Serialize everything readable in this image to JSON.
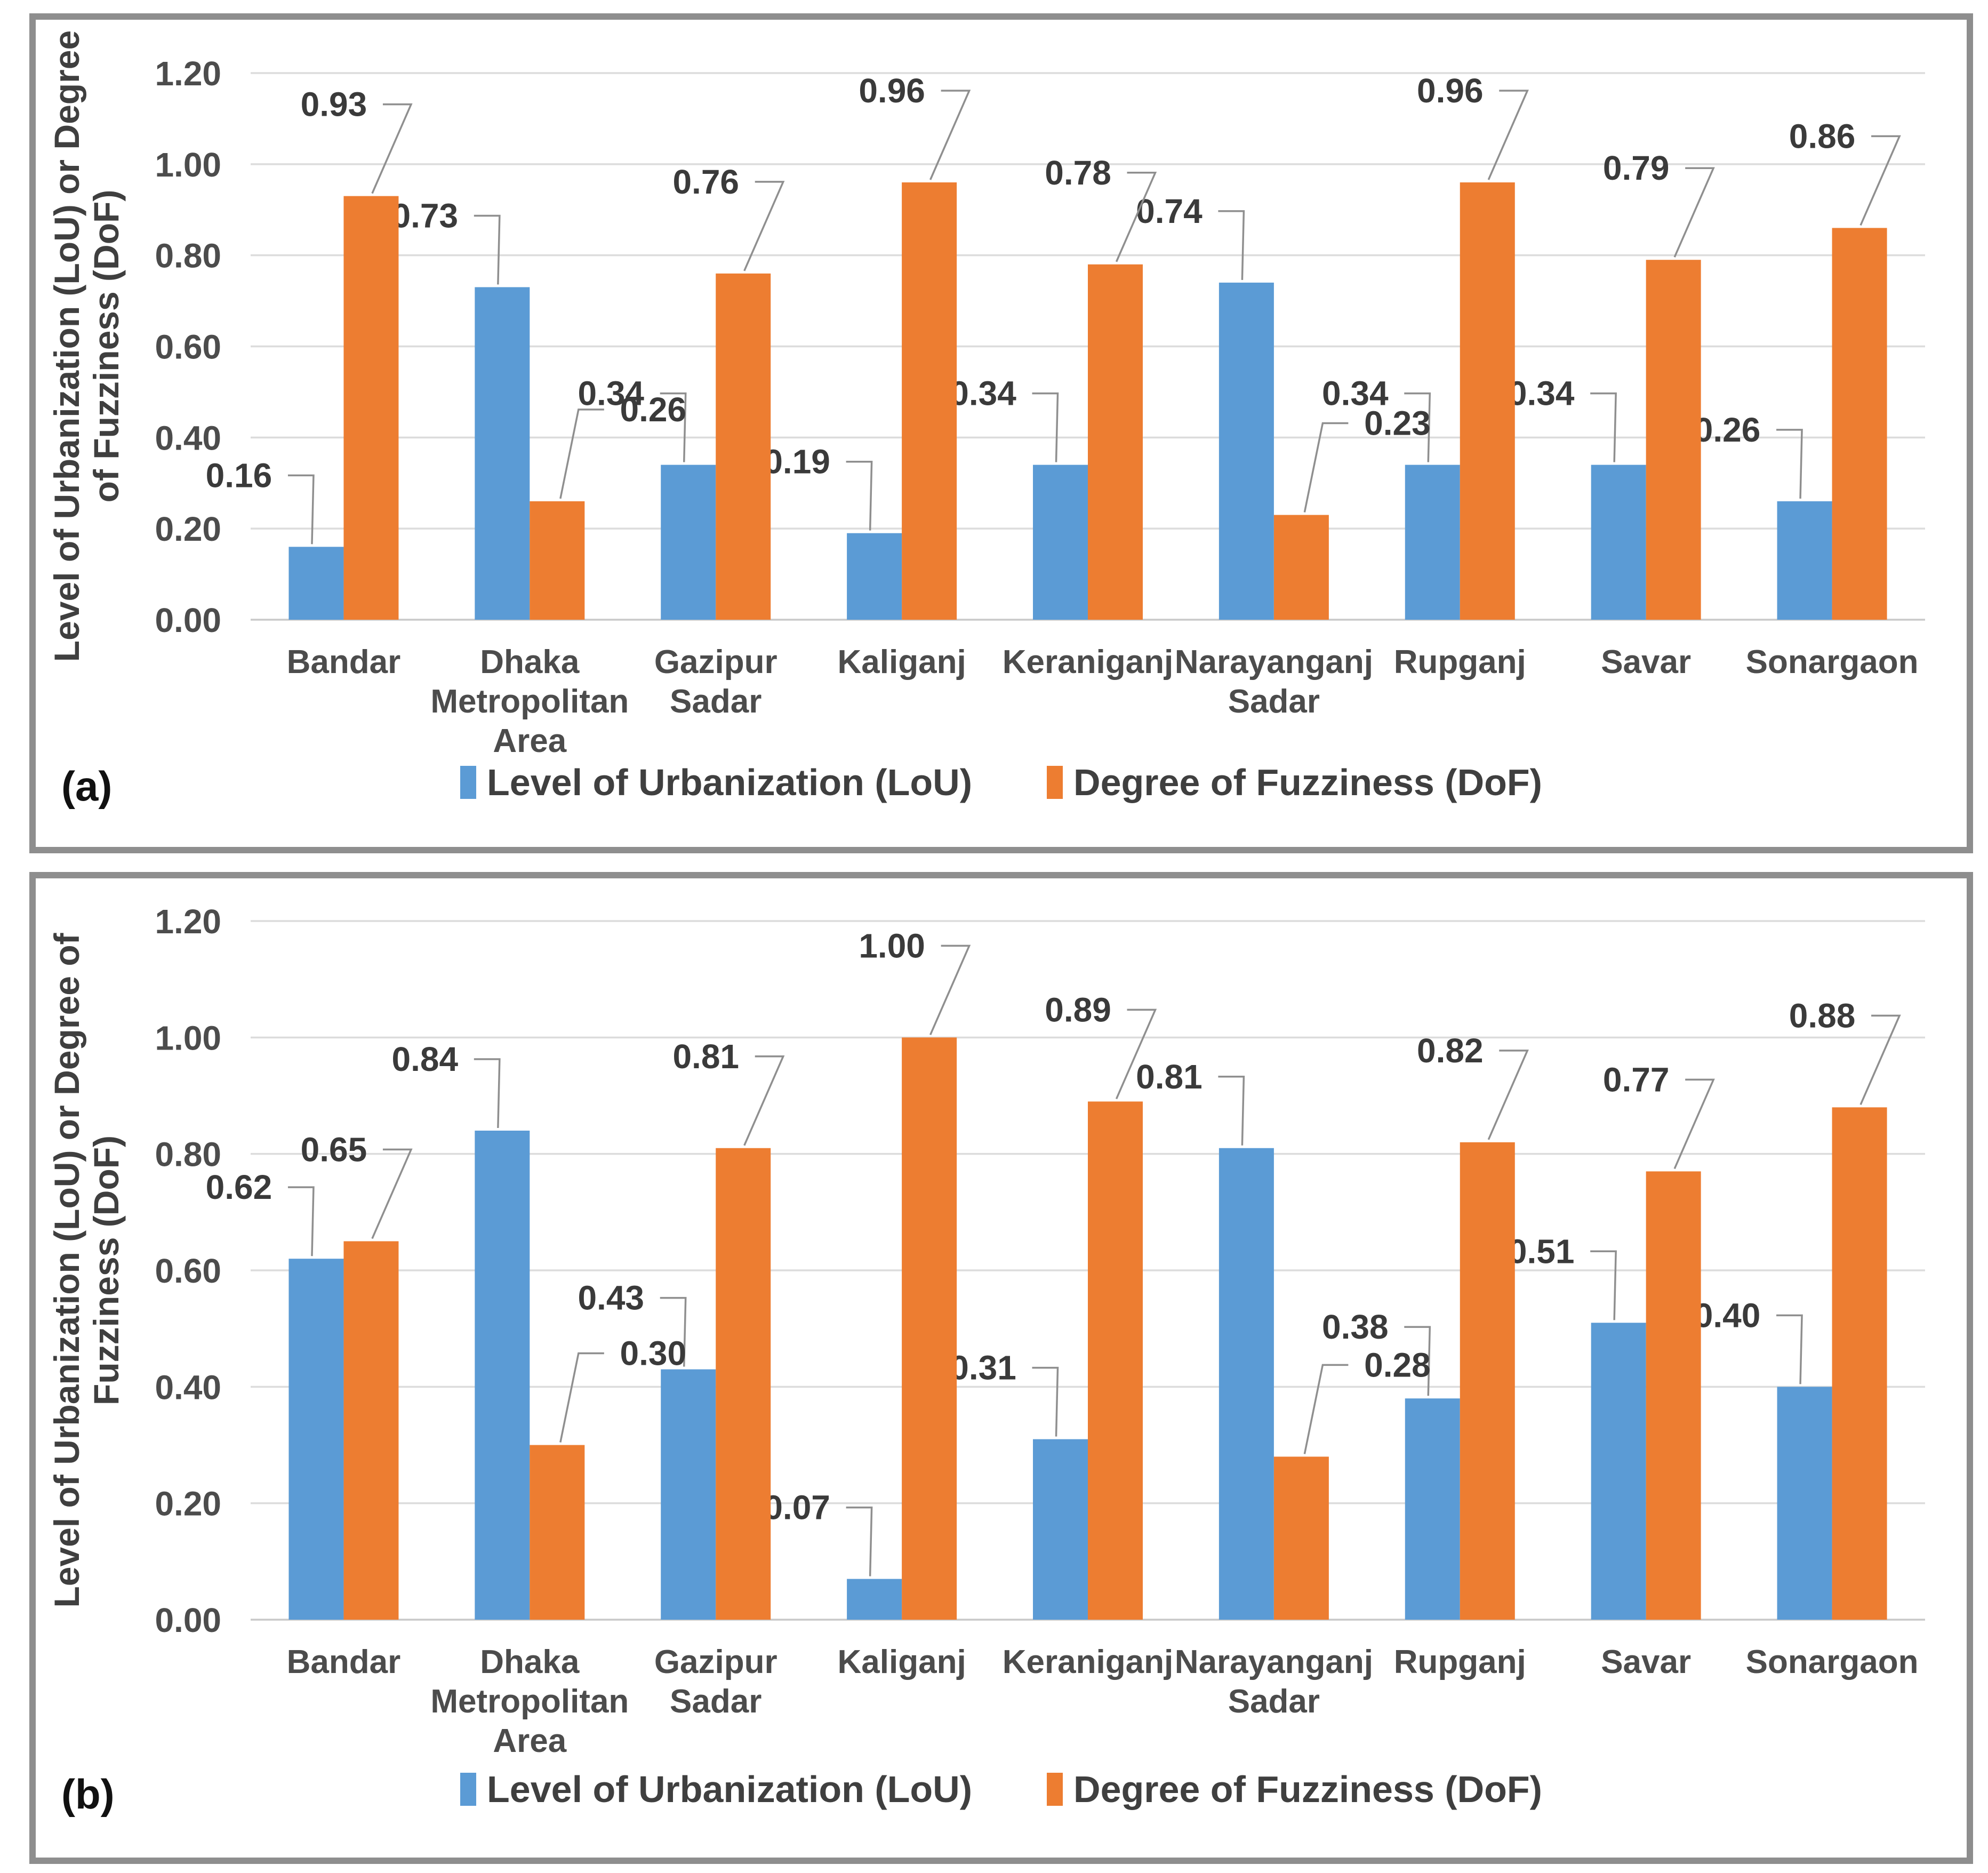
{
  "figure": {
    "panels": [
      {
        "label": "(a)"
      },
      {
        "label": "(b)"
      }
    ]
  },
  "colors": {
    "series_blue": "#5B9BD5",
    "series_orange": "#ED7D31",
    "gridline": "#DCDCDC",
    "axis_line": "#C9C9C9",
    "leader_line": "#8F8F8F",
    "panel_border": "#8E8E8E",
    "text_dark": "#3F3F3F"
  },
  "chart_data": [
    {
      "type": "bar",
      "panel_label": "(a)",
      "title": "",
      "ylabel": "Level of Urbanization (LoU) or Degree of Fuzziness (DoF)",
      "ylabel_lines": [
        "Level of Urbanization (LoU) or Degree",
        "of Fuzziness (DoF)"
      ],
      "xlabel": "",
      "categories": [
        "Bandar",
        "Dhaka Metropolitan Area",
        "Gazipur Sadar",
        "Kaliganj",
        "Keraniganj",
        "Narayanganj Sadar",
        "Rupganj",
        "Savar",
        "Sonargaon"
      ],
      "series": [
        {
          "name": "Level of Urbanization (LoU)",
          "color": "#5B9BD5",
          "values": [
            0.16,
            0.73,
            0.34,
            0.19,
            0.34,
            0.74,
            0.34,
            0.34,
            0.26
          ]
        },
        {
          "name": "Degree of Fuzziness (DoF)",
          "color": "#ED7D31",
          "values": [
            0.93,
            0.26,
            0.76,
            0.96,
            0.78,
            0.23,
            0.96,
            0.79,
            0.86
          ]
        }
      ],
      "ylim": [
        0.0,
        1.2
      ],
      "ytick_step": 0.2,
      "yticks": [
        "1.20",
        "1.00",
        "0.80",
        "0.60",
        "0.40",
        "0.20",
        "0.00"
      ],
      "grid": true,
      "data_labels": true,
      "value_format": "0.00",
      "legend_position": "bottom"
    },
    {
      "type": "bar",
      "panel_label": "(b)",
      "title": "",
      "ylabel": "Level of Urbanization (LoU) or Degree of Fuzziness (DoF)",
      "ylabel_lines": [
        "Level of Urbanization (LoU) or Degree of",
        "Fuzziness (DoF)"
      ],
      "xlabel": "",
      "categories": [
        "Bandar",
        "Dhaka Metropolitan Area",
        "Gazipur Sadar",
        "Kaliganj",
        "Keraniganj",
        "Narayanganj Sadar",
        "Rupganj",
        "Savar",
        "Sonargaon"
      ],
      "series": [
        {
          "name": "Level of Urbanization (LoU)",
          "color": "#5B9BD5",
          "values": [
            0.62,
            0.84,
            0.43,
            0.07,
            0.31,
            0.81,
            0.38,
            0.51,
            0.4
          ]
        },
        {
          "name": "Degree of Fuzziness (DoF)",
          "color": "#ED7D31",
          "values": [
            0.65,
            0.3,
            0.81,
            1.0,
            0.89,
            0.28,
            0.82,
            0.77,
            0.88
          ]
        }
      ],
      "ylim": [
        0.0,
        1.2
      ],
      "ytick_step": 0.2,
      "yticks": [
        "1.20",
        "1.00",
        "0.80",
        "0.60",
        "0.40",
        "0.20",
        "0.00"
      ],
      "grid": true,
      "data_labels": true,
      "value_format": "0.00",
      "legend_position": "bottom"
    }
  ]
}
